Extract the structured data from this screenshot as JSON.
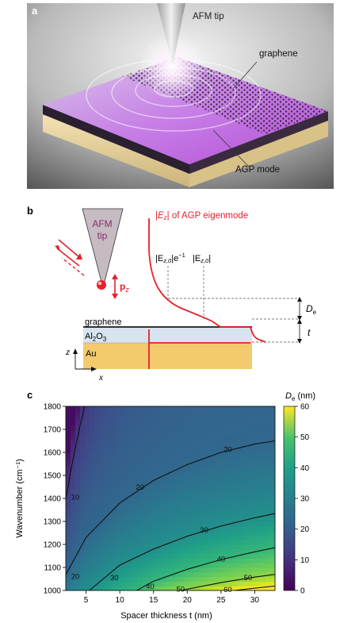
{
  "panel_a": {
    "label": "a",
    "afm_tip": "AFM tip",
    "graphene": "graphene",
    "agp_mode": "AGP mode"
  },
  "panel_b": {
    "label": "b",
    "afm": "AFM",
    "tip": "tip",
    "pz": "p",
    "pz_sub": "z",
    "eigenmode_title_pre": "|",
    "eigenmode_title_E": "E",
    "eigenmode_title_sub": "z",
    "eigenmode_title_post": "| of AGP eigenmode",
    "decay_label": "|E",
    "decay_sub": "z,0",
    "decay_exp": "|e",
    "decay_exp_sup": "−1",
    "peak_label": "|E",
    "peak_sub": "z,0",
    "peak_close": "|",
    "graphene": "graphene",
    "al2o3_a": "Al",
    "al2o3_sub1": "2",
    "al2o3_b": "O",
    "al2o3_sub2": "3",
    "au": "Au",
    "De": "D",
    "De_sub": "e",
    "t": "t",
    "axis_z": "z",
    "axis_x": "x"
  },
  "panel_c": {
    "label": "c",
    "colorbar_title": "D",
    "colorbar_sub": "e",
    "colorbar_unit": " (nm)"
  },
  "colors": {
    "red": "#e8202a",
    "gold": "#f3cb6e",
    "al2o3": "#d7e4f0",
    "tip_fill": "#c6bbc2",
    "tip_text": "#8a2c6a"
  },
  "chart_data": {
    "type": "heatmap",
    "xlabel": "Spacer thickness t (nm)",
    "ylabel": "Wavenumber (cm⁻¹)",
    "xlim": [
      2,
      33
    ],
    "ylim": [
      1000,
      1800
    ],
    "xticks": [
      5,
      10,
      15,
      20,
      25,
      30
    ],
    "yticks": [
      1000,
      1100,
      1200,
      1300,
      1400,
      1500,
      1600,
      1700,
      1800
    ],
    "colorbar": {
      "min": 0,
      "max": 60,
      "ticks": [
        0,
        10,
        20,
        30,
        40,
        50,
        60
      ],
      "colormap": "viridis"
    },
    "contours": [
      {
        "level": 10,
        "points": [
          [
            2.0,
            1398
          ],
          [
            3.0,
            1560
          ],
          [
            4.0,
            1700
          ],
          [
            4.8,
            1800
          ]
        ]
      },
      {
        "level": 20,
        "points": [
          [
            2.0,
            1068
          ],
          [
            5,
            1230
          ],
          [
            10,
            1380
          ],
          [
            15,
            1478
          ],
          [
            20,
            1547
          ],
          [
            25,
            1600
          ],
          [
            30,
            1636
          ],
          [
            33,
            1650
          ]
        ]
      },
      {
        "level": 30,
        "points": [
          [
            5.5,
            1000
          ],
          [
            10,
            1110
          ],
          [
            15,
            1180
          ],
          [
            20,
            1236
          ],
          [
            25,
            1280
          ],
          [
            30,
            1316
          ],
          [
            33,
            1334
          ]
        ]
      },
      {
        "level": 40,
        "points": [
          [
            12.5,
            1000
          ],
          [
            15,
            1040
          ],
          [
            20,
            1092
          ],
          [
            25,
            1134
          ],
          [
            30,
            1168
          ],
          [
            33,
            1186
          ]
        ]
      },
      {
        "level": 50,
        "points": [
          [
            19,
            1000
          ],
          [
            25,
            1034
          ],
          [
            30,
            1058
          ],
          [
            33,
            1070
          ]
        ]
      },
      {
        "level": 60,
        "points": [
          [
            27,
            1000
          ],
          [
            30,
            1010
          ],
          [
            33,
            1019
          ]
        ]
      }
    ],
    "contour_labels": [
      {
        "text": "10",
        "x": 3.4,
        "y": 1405
      },
      {
        "text": "20",
        "x": 3.4,
        "y": 1060
      },
      {
        "text": "20",
        "x": 13.0,
        "y": 1448
      },
      {
        "text": "20",
        "x": 26.0,
        "y": 1612
      },
      {
        "text": "30",
        "x": 9.2,
        "y": 1055
      },
      {
        "text": "30",
        "x": 22.5,
        "y": 1262
      },
      {
        "text": "40",
        "x": 14.5,
        "y": 1018
      },
      {
        "text": "40",
        "x": 25.0,
        "y": 1137
      },
      {
        "text": "50",
        "x": 19.0,
        "y": 1005
      },
      {
        "text": "50",
        "x": 29.0,
        "y": 1055
      },
      {
        "text": "60",
        "x": 26.0,
        "y": 1004
      }
    ]
  }
}
